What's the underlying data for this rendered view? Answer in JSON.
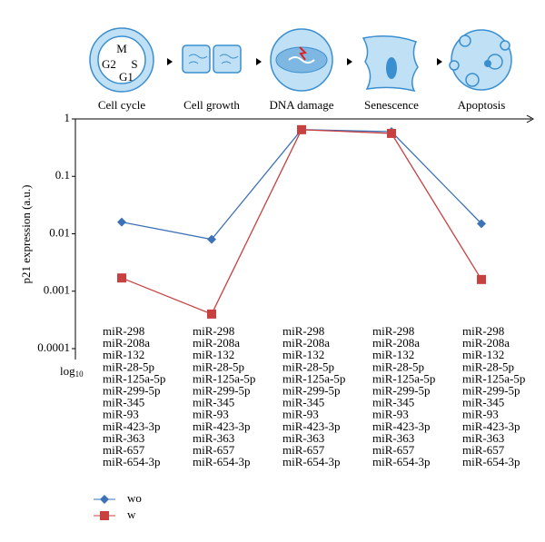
{
  "chart_data": {
    "type": "line",
    "categories": [
      "Cell cycle",
      "Cell growth",
      "DNA damage",
      "Senescence",
      "Apoptosis"
    ],
    "cell_cycle_phases": [
      "M",
      "G2",
      "S",
      "G1"
    ],
    "y_label": "p21 expression (a.u.)",
    "scale_note": {
      "text": "log",
      "subscript": "10"
    },
    "log_scale": true,
    "ylim": [
      0.0001,
      1
    ],
    "yticks": [
      1,
      0.1,
      0.01,
      0.001,
      0.0001
    ],
    "series": [
      {
        "name": "wo",
        "color": "#3d72b8",
        "marker": "diamond",
        "values": [
          0.016,
          0.008,
          0.65,
          0.6,
          0.015
        ]
      },
      {
        "name": "w",
        "color": "#c84141",
        "marker": "square",
        "values": [
          0.0017,
          0.0004,
          0.65,
          0.56,
          0.0016
        ]
      }
    ],
    "mirna_columns": [
      [
        {
          "name": "miR-298",
          "color": "#000"
        },
        {
          "name": "miR-208a",
          "color": "#000"
        },
        {
          "name": "miR-132",
          "color": "#000"
        },
        {
          "name": "miR-28-5p",
          "color": "#000"
        },
        {
          "name": "miR-125a-5p",
          "color": "#000"
        },
        {
          "name": "miR-299-5p",
          "color": "#8c8c8c"
        },
        {
          "name": "miR-345",
          "color": "#000"
        },
        {
          "name": "miR-93",
          "color": "#000"
        },
        {
          "name": "miR-423-3p",
          "color": "#000"
        },
        {
          "name": "miR-363",
          "color": "#000"
        },
        {
          "name": "miR-657",
          "color": "#8c8c8c"
        },
        {
          "name": "miR-654-3p",
          "color": "#8c8c8c"
        }
      ],
      [
        {
          "name": "miR-298",
          "color": "#8c8c8c"
        },
        {
          "name": "miR-208a",
          "color": "#000"
        },
        {
          "name": "miR-132",
          "color": "#000"
        },
        {
          "name": "miR-28-5p",
          "color": "#000"
        },
        {
          "name": "miR-125a-5p",
          "color": "#000"
        },
        {
          "name": "miR-299-5p",
          "color": "#000"
        },
        {
          "name": "miR-345",
          "color": "#000"
        },
        {
          "name": "miR-93",
          "color": "#000"
        },
        {
          "name": "miR-423-3p",
          "color": "#000"
        },
        {
          "name": "miR-363",
          "color": "#000"
        },
        {
          "name": "miR-657",
          "color": "#000"
        },
        {
          "name": "miR-654-3p",
          "color": "#000"
        }
      ],
      [
        {
          "name": "miR-298",
          "color": "#8c8c8c"
        },
        {
          "name": "miR-208a",
          "color": "#000"
        },
        {
          "name": "miR-132",
          "color": "#8c8c8c"
        },
        {
          "name": "miR-28-5p",
          "color": "#8c8c8c"
        },
        {
          "name": "miR-125a-5p",
          "color": "#000"
        },
        {
          "name": "miR-299-5p",
          "color": "#8c8c8c"
        },
        {
          "name": "miR-345",
          "color": "#000"
        },
        {
          "name": "miR-93",
          "color": "#8c8c8c"
        },
        {
          "name": "miR-423-3p",
          "color": "#8c8c8c"
        },
        {
          "name": "miR-363",
          "color": "#8c8c8c"
        },
        {
          "name": "miR-657",
          "color": "#8c8c8c"
        },
        {
          "name": "miR-654-3p",
          "color": "#000"
        }
      ],
      [
        {
          "name": "miR-298",
          "color": "#8c8c8c"
        },
        {
          "name": "miR-208a",
          "color": "#8c8c8c"
        },
        {
          "name": "miR-132",
          "color": "#8c8c8c"
        },
        {
          "name": "miR-28-5p",
          "color": "#8c8c8c"
        },
        {
          "name": "miR-125a-5p",
          "color": "#000"
        },
        {
          "name": "miR-299-5p",
          "color": "#000"
        },
        {
          "name": "miR-345",
          "color": "#8c8c8c"
        },
        {
          "name": "miR-93",
          "color": "#8c8c8c"
        },
        {
          "name": "miR-423-3p",
          "color": "#000"
        },
        {
          "name": "miR-363",
          "color": "#8c8c8c"
        },
        {
          "name": "miR-657",
          "color": "#8c8c8c"
        },
        {
          "name": "miR-654-3p",
          "color": "#000"
        }
      ],
      [
        {
          "name": "miR-298",
          "color": "#000"
        },
        {
          "name": "miR-208a",
          "color": "#000"
        },
        {
          "name": "miR-132",
          "color": "#000"
        },
        {
          "name": "miR-28-5p",
          "color": "#000"
        },
        {
          "name": "miR-125a-5p",
          "color": "#000"
        },
        {
          "name": "miR-299-5p",
          "color": "#8c8c8c"
        },
        {
          "name": "miR-345",
          "color": "#000"
        },
        {
          "name": "miR-93",
          "color": "#000"
        },
        {
          "name": "miR-423-3p",
          "color": "#000"
        },
        {
          "name": "miR-363",
          "color": "#000"
        },
        {
          "name": "miR-657",
          "color": "#000"
        },
        {
          "name": "miR-654-3p",
          "color": "#000"
        }
      ]
    ]
  }
}
